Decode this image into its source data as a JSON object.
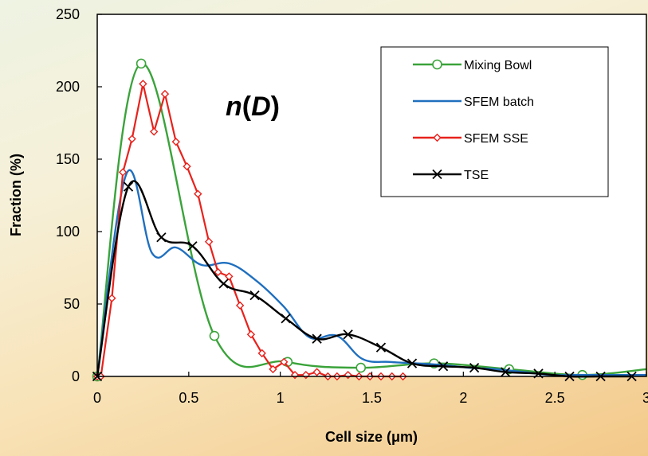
{
  "chart_data": {
    "type": "line",
    "title": "",
    "annotation": "n(D)",
    "annotation_parts": {
      "italic_name": "n",
      "paren_open": "(",
      "italic_arg": "D",
      "paren_close": ")"
    },
    "xlabel": "Cell size (μm)",
    "ylabel": "Fraction (%)",
    "xlim": [
      0,
      3
    ],
    "ylim": [
      0,
      250
    ],
    "xticks": [
      0,
      0.5,
      1,
      1.5,
      2,
      2.5,
      3
    ],
    "xtick_labels": [
      "0",
      "0.5",
      "1",
      "1.5",
      "2",
      "2.5",
      "3"
    ],
    "yticks": [
      0,
      50,
      100,
      150,
      200,
      250
    ],
    "ytick_labels": [
      "0",
      "50",
      "100",
      "150",
      "200",
      "250"
    ],
    "grid": false,
    "legend_position": "top-right",
    "series": [
      {
        "name": "Mixing Bowl",
        "color": "#3aa33a",
        "marker": "circle",
        "smooth": true,
        "x": [
          0,
          0.24,
          0.64,
          1.04,
          1.44,
          1.84,
          2.25,
          2.65,
          3.0
        ],
        "y": [
          0,
          216,
          28,
          10,
          6,
          9,
          5,
          1,
          5
        ],
        "markers_x": [
          0,
          0.24,
          0.64,
          1.04,
          1.44,
          1.84,
          2.25,
          2.65
        ],
        "markers_y": [
          0,
          216,
          28,
          10,
          6,
          9,
          5,
          1
        ]
      },
      {
        "name": "SFEM batch",
        "color": "#1f6fbf",
        "marker": "none",
        "smooth": true,
        "x": [
          0,
          0.16,
          0.3,
          0.43,
          0.57,
          0.72,
          0.87,
          1.02,
          1.16,
          1.31,
          1.45,
          1.6,
          1.74,
          1.88,
          2.03,
          2.18,
          2.33,
          2.48,
          2.62,
          2.77,
          2.91,
          3.0
        ],
        "y": [
          0,
          140,
          85,
          89,
          77,
          78,
          66,
          48,
          27,
          28,
          12,
          10,
          9,
          8,
          6,
          5,
          3,
          1,
          1,
          1,
          1,
          1
        ],
        "markers_x": [],
        "markers_y": []
      },
      {
        "name": "SFEM SSE",
        "color": "#e8221c",
        "marker": "diamond",
        "smooth": false,
        "x": [
          0,
          0.02,
          0.08,
          0.14,
          0.19,
          0.25,
          0.31,
          0.37,
          0.43,
          0.49,
          0.55,
          0.61,
          0.66,
          0.72,
          0.78,
          0.84,
          0.9,
          0.96,
          1.02,
          1.08,
          1.14,
          1.2,
          1.26,
          1.31,
          1.37,
          1.43,
          1.49,
          1.55,
          1.61,
          1.67
        ],
        "y": [
          0,
          0,
          54,
          141,
          164,
          202,
          169,
          195,
          162,
          145,
          126,
          93,
          72,
          69,
          49,
          29,
          16,
          5,
          10,
          1,
          1,
          3,
          0,
          0,
          1,
          0,
          0,
          0,
          0,
          0
        ],
        "markers_x": [
          0,
          0.02,
          0.08,
          0.14,
          0.19,
          0.25,
          0.31,
          0.37,
          0.43,
          0.49,
          0.55,
          0.61,
          0.66,
          0.72,
          0.78,
          0.84,
          0.9,
          0.96,
          1.02,
          1.08,
          1.14,
          1.2,
          1.26,
          1.31,
          1.37,
          1.43,
          1.49,
          1.55,
          1.61,
          1.67
        ],
        "markers_y": [
          0,
          0,
          54,
          141,
          164,
          202,
          169,
          195,
          162,
          145,
          126,
          93,
          72,
          69,
          49,
          29,
          16,
          5,
          10,
          1,
          1,
          3,
          0,
          0,
          1,
          0,
          0,
          0,
          0,
          0
        ]
      },
      {
        "name": "TSE",
        "color": "#000000",
        "marker": "x",
        "smooth": true,
        "x": [
          0,
          0.17,
          0.35,
          0.52,
          0.69,
          0.86,
          1.03,
          1.2,
          1.37,
          1.55,
          1.72,
          1.89,
          2.06,
          2.23,
          2.41,
          2.58,
          2.75,
          2.92
        ],
        "y": [
          0,
          131,
          96,
          90,
          64,
          56,
          40,
          26,
          29,
          20,
          9,
          7,
          6,
          3,
          2,
          0,
          0,
          0
        ],
        "markers_x": [
          0,
          0.17,
          0.35,
          0.52,
          0.69,
          0.86,
          1.03,
          1.2,
          1.37,
          1.55,
          1.72,
          1.89,
          2.06,
          2.23,
          2.41,
          2.58,
          2.75,
          2.92
        ],
        "markers_y": [
          0,
          131,
          96,
          90,
          64,
          56,
          40,
          26,
          29,
          20,
          9,
          7,
          6,
          3,
          2,
          0,
          0,
          0
        ]
      }
    ]
  }
}
